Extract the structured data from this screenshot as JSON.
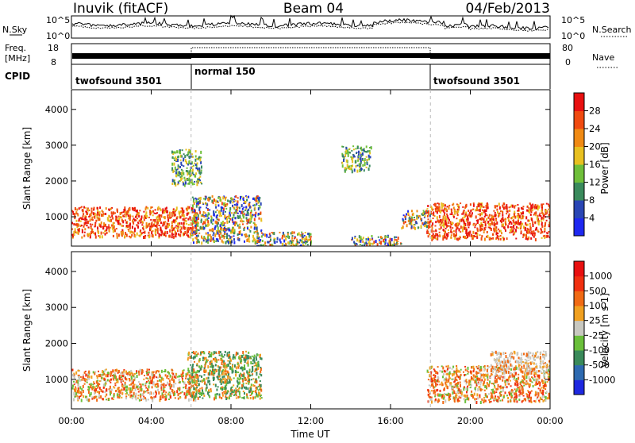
{
  "header": {
    "station": "Inuvik (fitACF)",
    "beam": "Beam 04",
    "date": "04/Feb/2013"
  },
  "side_labels": {
    "nsky": "N.Sky",
    "nsearch": "N.Search",
    "freq_line1": "Freq.",
    "freq_line2": "[MHz]",
    "nave": "Nave",
    "cpid": "CPID"
  },
  "noise_axis": {
    "left_ticks": [
      "10^5",
      "10^0"
    ],
    "right_ticks": [
      "10^5",
      "10^0"
    ]
  },
  "freq_axis": {
    "left_ticks": [
      "18",
      "8"
    ],
    "right_ticks": [
      "80",
      "0"
    ]
  },
  "cpid_segments": [
    {
      "label": "twofsound 3501",
      "start": 0,
      "end": 6
    },
    {
      "label": "normal 150",
      "start": 6,
      "end": 18
    },
    {
      "label": "twofsound 3501",
      "start": 18,
      "end": 24
    }
  ],
  "chart_data": [
    {
      "type": "heatmap",
      "name": "power-panel",
      "ylabel": "Slant Range [km]",
      "xlabel": "Time UT",
      "xlim": [
        0,
        24
      ],
      "ylim": [
        180,
        4550
      ],
      "yticks": [
        "1000",
        "2000",
        "3000",
        "4000"
      ],
      "xticks": [
        "00:00",
        "04:00",
        "08:00",
        "12:00",
        "16:00",
        "20:00",
        "00:00"
      ],
      "colorbar": {
        "label": "Power [dB]",
        "ticks": [
          "4",
          "8",
          "12",
          "16",
          "20",
          "24",
          "28"
        ],
        "colors": [
          "#1e28f0",
          "#2a46b4",
          "#3a8a5c",
          "#6fbf3a",
          "#e8c020",
          "#f08a14",
          "#f04a10",
          "#e81010"
        ]
      },
      "echo_regions": [
        {
          "t0": 0.0,
          "t1": 6.3,
          "r0": 450,
          "r1": 1300,
          "level": "high"
        },
        {
          "t0": 6.0,
          "t1": 9.5,
          "r0": 300,
          "r1": 1600,
          "level": "mixed"
        },
        {
          "t0": 9.2,
          "t1": 12.0,
          "r0": 200,
          "r1": 600,
          "level": "mixed"
        },
        {
          "t0": 14.0,
          "t1": 16.5,
          "r0": 200,
          "r1": 500,
          "level": "mixed"
        },
        {
          "t0": 16.5,
          "t1": 18.0,
          "r0": 700,
          "r1": 1200,
          "level": "mixed"
        },
        {
          "t0": 17.8,
          "t1": 24.0,
          "r0": 400,
          "r1": 1400,
          "level": "high"
        },
        {
          "t0": 5.0,
          "t1": 6.5,
          "r0": 1900,
          "r1": 2900,
          "level": "low"
        },
        {
          "t0": 13.5,
          "t1": 15.0,
          "r0": 2300,
          "r1": 3000,
          "level": "low"
        }
      ]
    },
    {
      "type": "heatmap",
      "name": "velocity-panel",
      "ylabel": "Slant Range [km]",
      "xlabel": "Time UT",
      "xlim": [
        0,
        24
      ],
      "ylim": [
        180,
        4550
      ],
      "yticks": [
        "1000",
        "2000",
        "3000",
        "4000"
      ],
      "xticks": [
        "00:00",
        "04:00",
        "08:00",
        "12:00",
        "16:00",
        "20:00",
        "00:00"
      ],
      "colorbar": {
        "label": "Velocity [m s-1]",
        "ticks": [
          "1000",
          "500",
          "100",
          "25",
          "-25",
          "-100",
          "-500",
          "-1000"
        ],
        "colors": [
          "#1e28e0",
          "#2e6ab0",
          "#3a8a5a",
          "#6abf3a",
          "#c8c8c0",
          "#f0a020",
          "#f06a14",
          "#f03010",
          "#e81010"
        ]
      },
      "echo_regions": [
        {
          "t0": 0.0,
          "t1": 6.3,
          "r0": 450,
          "r1": 1300,
          "level": "orange"
        },
        {
          "t0": 5.8,
          "t1": 9.5,
          "r0": 500,
          "r1": 1800,
          "level": "green"
        },
        {
          "t0": 17.8,
          "t1": 24.0,
          "r0": 400,
          "r1": 1400,
          "level": "orange"
        },
        {
          "t0": 21.0,
          "t1": 24.0,
          "r0": 1200,
          "r1": 1800,
          "level": "grey"
        }
      ]
    }
  ]
}
